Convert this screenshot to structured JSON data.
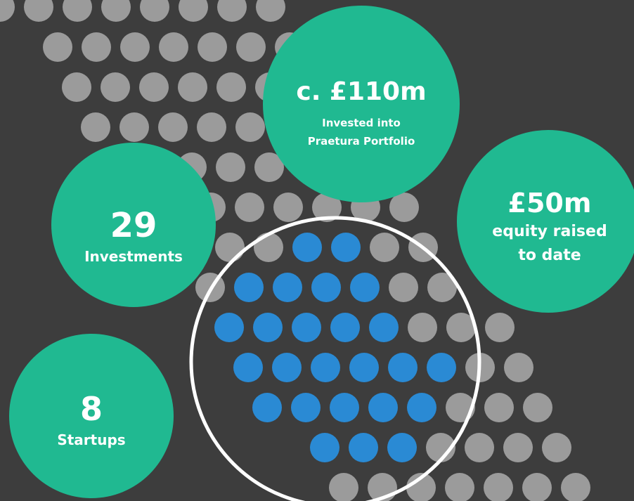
{
  "stats": [
    {
      "value": "c. £110m",
      "label": [
        "Invested into",
        "Praetura Portfolio"
      ]
    },
    {
      "value": "£50m",
      "label": [
        "equity raised",
        "to date"
      ]
    },
    {
      "value": "29",
      "label": [
        "Investments"
      ]
    },
    {
      "value": "8",
      "label": [
        "Startups"
      ]
    }
  ]
}
